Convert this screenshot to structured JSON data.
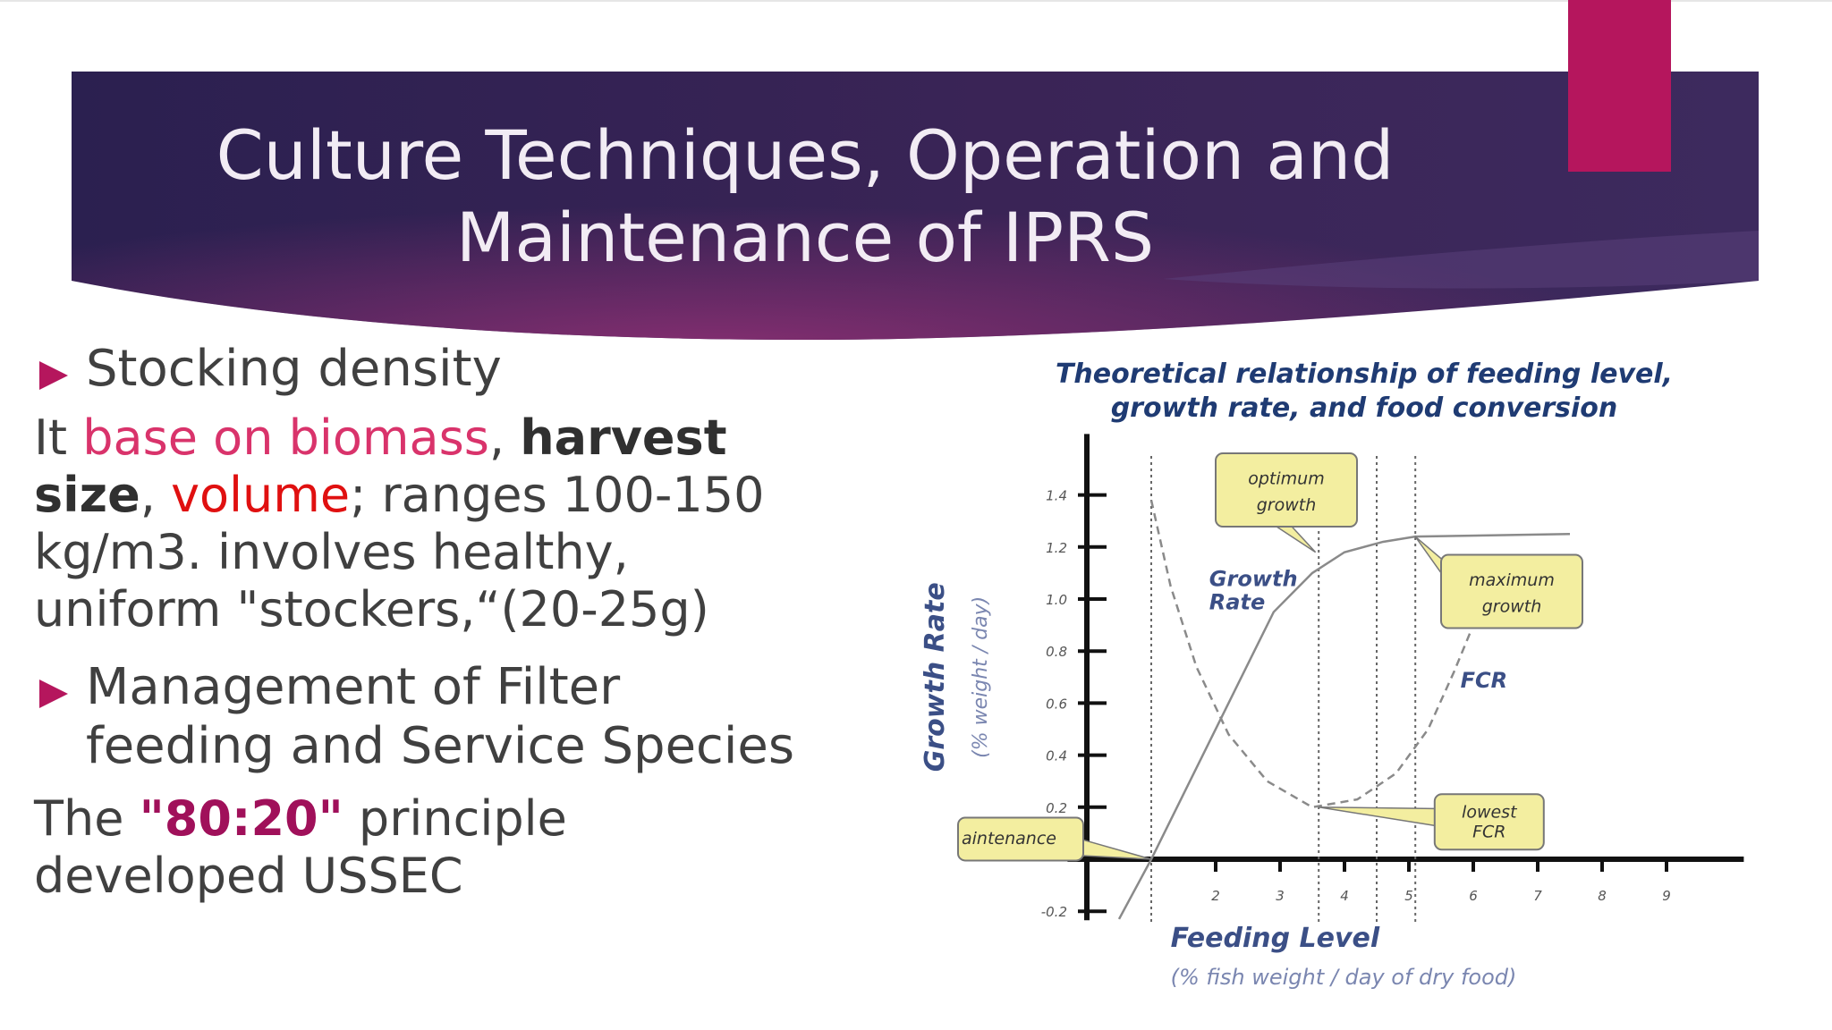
{
  "slide": {
    "title_line1": "Culture Techniques, Operation and",
    "title_line2": "Maintenance of IPRS"
  },
  "colors": {
    "banner_left": "#2b2050",
    "banner_right": "#3d2a5e",
    "banner_glow": "#7c2d6e",
    "accent": "#b5165d",
    "highlight_pink": "#d9336b",
    "highlight_red": "#e01010",
    "highlight_maroon": "#a0105a"
  },
  "content": {
    "bullet1": "Stocking density",
    "para1": {
      "p1": "It ",
      "p2": "base on biomass",
      "p3": ", ",
      "p4": "harvest size",
      "p5": ",",
      "p6": "volume",
      "p7": "; ranges 100-150 kg/m3. involves healthy, uniform \"stockers,“(20-25g)"
    },
    "bullet2": "Management of Filter feeding and Service Species",
    "para2": {
      "p1": "The ",
      "p2": "\"80:20\"",
      "p3": " principle developed USSEC"
    }
  },
  "chart_data": {
    "type": "line",
    "title": "Theoretical relationship of feeding level, growth rate, and food conversion",
    "xlabel": "Feeding Level",
    "xlabel_sub": "(% fish weight / day of dry food)",
    "ylabel": "Growth Rate",
    "ylabel_sub": "(% weight / day)",
    "xlim": [
      0,
      10
    ],
    "ylim": [
      -0.2,
      1.6
    ],
    "x_ticks": [
      {
        "v": 2,
        "label": "2"
      },
      {
        "v": 3,
        "label": "3"
      },
      {
        "v": 4,
        "label": "4"
      },
      {
        "v": 5,
        "label": "5"
      },
      {
        "v": 6,
        "label": "6"
      },
      {
        "v": 7,
        "label": "7"
      },
      {
        "v": 8,
        "label": "8"
      },
      {
        "v": 9,
        "label": "9"
      }
    ],
    "y_ticks": [
      {
        "v": -0.2,
        "label": "-0.2"
      },
      {
        "v": 0.2,
        "label": "0.2"
      },
      {
        "v": 0.4,
        "label": "0.4"
      },
      {
        "v": 0.6,
        "label": "0.6"
      },
      {
        "v": 0.8,
        "label": "0.8"
      },
      {
        "v": 1.0,
        "label": "1.0"
      },
      {
        "v": 1.2,
        "label": "1.2"
      },
      {
        "v": 1.4,
        "label": "1.4"
      }
    ],
    "series": [
      {
        "name": "Growth Rate",
        "style": "solid",
        "points": [
          [
            0.5,
            -0.23
          ],
          [
            1.0,
            0.0
          ],
          [
            1.6,
            0.3
          ],
          [
            2.2,
            0.6
          ],
          [
            2.9,
            0.95
          ],
          [
            3.5,
            1.1
          ],
          [
            4.0,
            1.18
          ],
          [
            4.6,
            1.22
          ],
          [
            5.1,
            1.24
          ],
          [
            7.5,
            1.25
          ]
        ]
      },
      {
        "name": "FCR",
        "style": "dashed",
        "points": [
          [
            1.0,
            1.38
          ],
          [
            1.3,
            1.05
          ],
          [
            1.7,
            0.74
          ],
          [
            2.2,
            0.48
          ],
          [
            2.8,
            0.3
          ],
          [
            3.5,
            0.2
          ],
          [
            4.2,
            0.23
          ],
          [
            4.8,
            0.33
          ],
          [
            5.3,
            0.5
          ],
          [
            5.7,
            0.72
          ],
          [
            6.0,
            0.9
          ]
        ]
      }
    ],
    "reference_lines_x": [
      1.0,
      3.6,
      4.5,
      5.1
    ],
    "annotations": [
      {
        "text1": "optimum",
        "text2": "growth"
      },
      {
        "text1": "maximum",
        "text2": "growth"
      },
      {
        "text1": "lowest",
        "text2": "FCR"
      },
      {
        "text1": "aintenance",
        "text2": ""
      }
    ],
    "curve_labels": {
      "growth_line1": "Growth",
      "growth_line2": "Rate",
      "fcr": "FCR"
    },
    "grid": false,
    "legend": "none"
  }
}
